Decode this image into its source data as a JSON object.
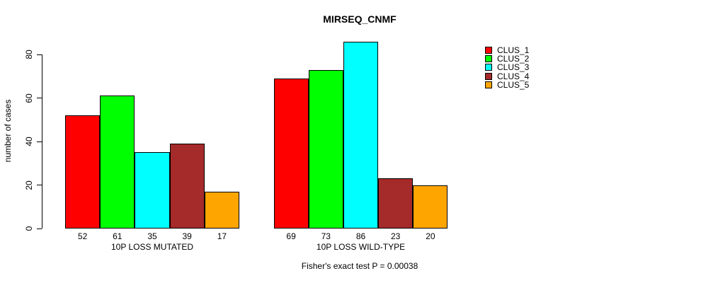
{
  "chart_data": {
    "type": "bar",
    "title": "MIRSEQ_CNMF",
    "categories": [
      "10P LOSS MUTATED",
      "10P LOSS WILD-TYPE"
    ],
    "series": [
      {
        "name": "CLUS_1",
        "color": "#FF0000",
        "values": [
          52,
          69
        ]
      },
      {
        "name": "CLUS_2",
        "color": "#00FF00",
        "values": [
          61,
          73
        ]
      },
      {
        "name": "CLUS_3",
        "color": "#00FFFF",
        "values": [
          35,
          86
        ]
      },
      {
        "name": "CLUS_4",
        "color": "#A52A2A",
        "values": [
          39,
          23
        ]
      },
      {
        "name": "CLUS_5",
        "color": "#FFA500",
        "values": [
          17,
          20
        ]
      }
    ],
    "xlabel": "",
    "ylabel": "number of cases",
    "yticks": [
      0,
      20,
      40,
      60,
      80
    ],
    "ylim": [
      0,
      86
    ],
    "grid": false,
    "bar_value_labels": true,
    "legend_position": "right",
    "annotation": "Fisher's exact test P = 0.00038"
  }
}
